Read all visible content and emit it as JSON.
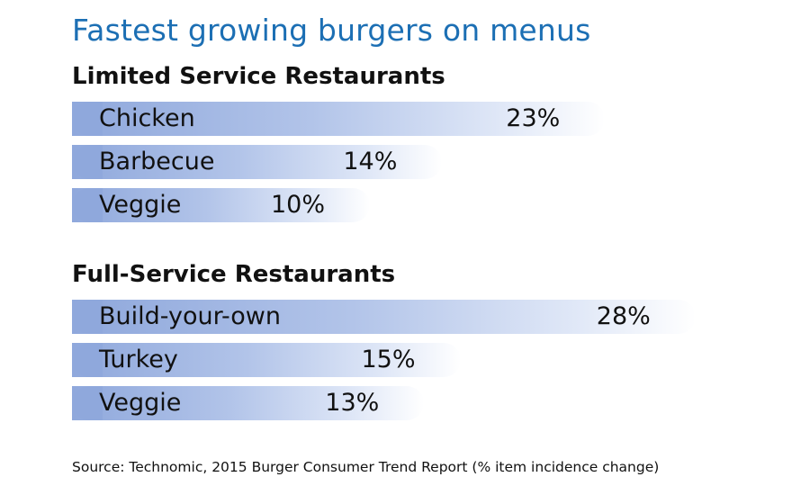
{
  "chart_data": {
    "type": "bar",
    "title": "Fastest growing burgers on menus",
    "groups": [
      {
        "name": "Limited Service Restaurants",
        "categories": [
          "Chicken",
          "Barbecue",
          "Veggie"
        ],
        "values": [
          23,
          14,
          10
        ],
        "value_labels": [
          "23%",
          "14%",
          "10%"
        ]
      },
      {
        "name": "Full-Service Restaurants",
        "categories": [
          "Build-your-own",
          "Turkey",
          "Veggie"
        ],
        "values": [
          28,
          15,
          13
        ],
        "value_labels": [
          "28%",
          "15%",
          "13%"
        ]
      }
    ],
    "unit": "%",
    "source": "Source: Technomic, 2015 Burger Consumer Trend Report (% item incidence change)"
  },
  "colors": {
    "title": "#1c6fb4",
    "bar_start": "#8fa8dc",
    "bar_end": "#ffffff"
  }
}
